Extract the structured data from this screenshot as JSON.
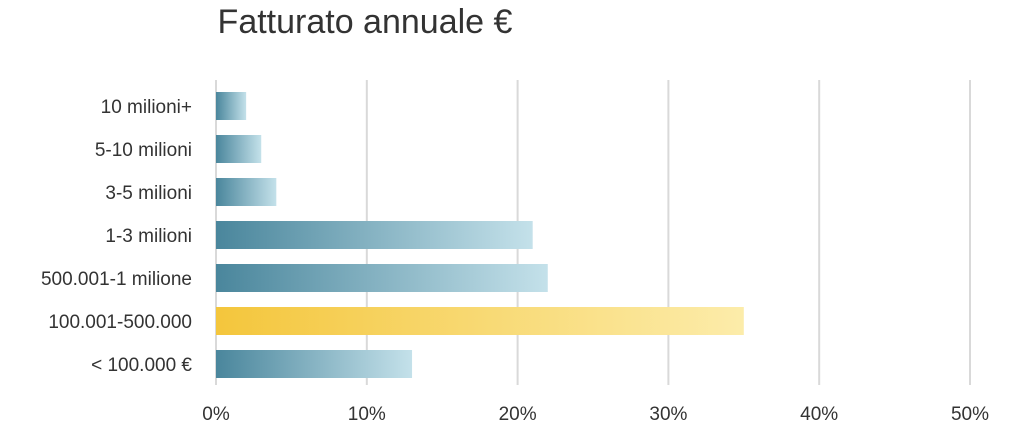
{
  "chart_data": {
    "type": "bar",
    "orientation": "horizontal",
    "title": "Fatturato annuale €",
    "categories": [
      "10 milioni+",
      "5-10 milioni",
      "3-5 milioni",
      "1-3 milioni",
      "500.001-1 milione",
      "100.001-500.000",
      "< 100.000 €"
    ],
    "values": [
      2,
      3,
      4,
      21,
      22,
      35,
      13
    ],
    "highlight_category": "100.001-500.000",
    "xlim": [
      0,
      50
    ],
    "x_ticks": [
      0,
      10,
      20,
      30,
      40,
      50
    ],
    "x_tick_labels": [
      "0%",
      "10%",
      "20%",
      "30%",
      "40%",
      "50%"
    ],
    "grid": "vertical",
    "legend": "none",
    "colors": {
      "bar_start": "#4a869c",
      "bar_end": "#c4e1ea",
      "highlight_start": "#f4c63c",
      "highlight_end": "#fcecaa",
      "grid": "#d9d9d9",
      "text": "#333333"
    }
  }
}
